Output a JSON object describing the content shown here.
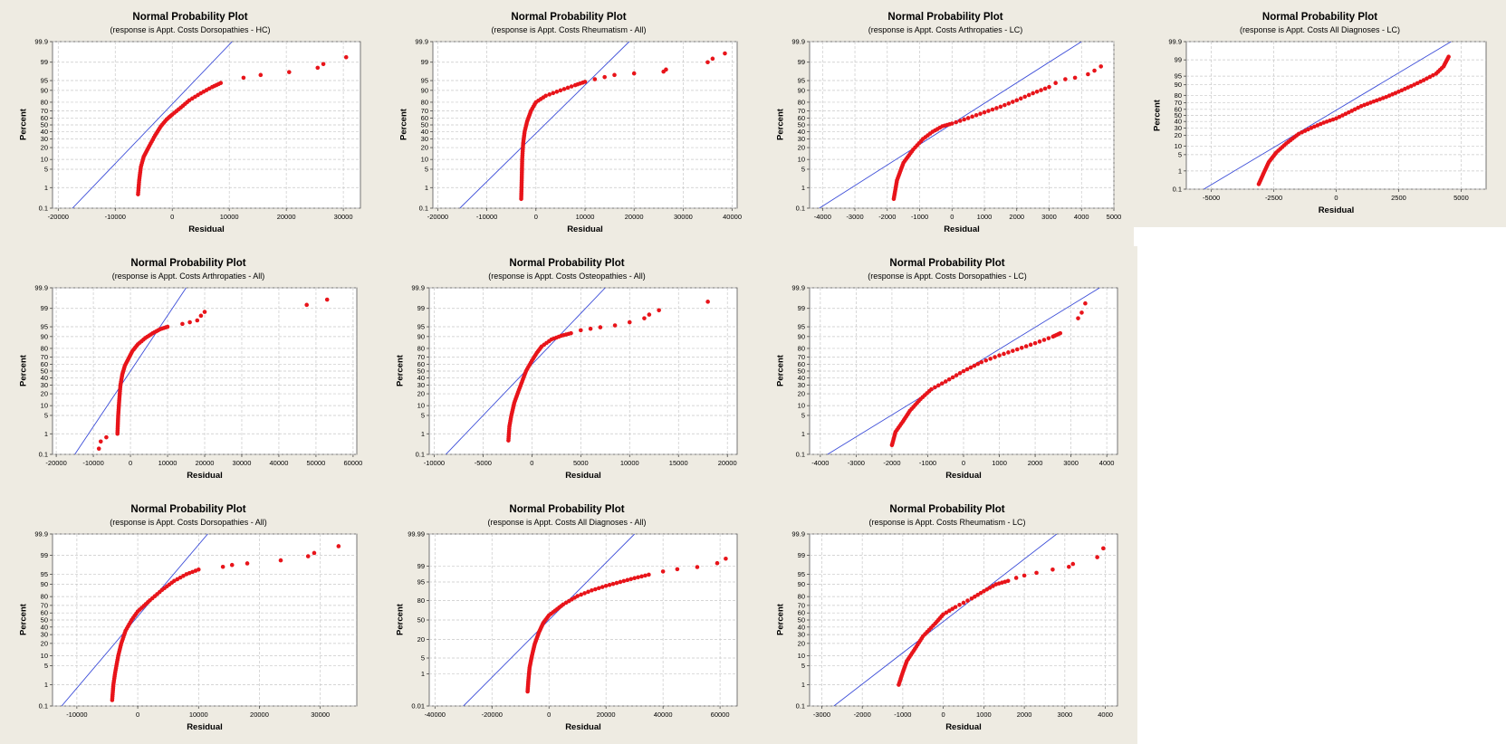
{
  "colors": {
    "background": "#eeebe2",
    "plot_bg": "#ffffff",
    "points": "#e8141a",
    "fit_line": "#3c4dd8",
    "grid": "#c8c8c8"
  },
  "chart_data": [
    {
      "type": "scatter",
      "title": "Normal Probability Plot",
      "subtitle": "(response is Appt. Costs Dorsopathies - HC)",
      "xlabel": "Residual",
      "ylabel": "Percent",
      "xlim": [
        -21000,
        33000
      ],
      "xticks": [
        -20000,
        -10000,
        0,
        10000,
        20000,
        30000
      ],
      "yticks": [
        0.1,
        1,
        5,
        10,
        20,
        30,
        40,
        50,
        60,
        70,
        80,
        90,
        95,
        99,
        99.9
      ],
      "ylim_percent": [
        0.1,
        99.9
      ],
      "grid": true,
      "fit_line": [
        [
          -17500,
          0.1
        ],
        [
          10500,
          99.9
        ]
      ],
      "body": [
        [
          -6000,
          0.5
        ],
        [
          -5800,
          2
        ],
        [
          -5500,
          6
        ],
        [
          -5000,
          12
        ],
        [
          -4000,
          22
        ],
        [
          -3000,
          35
        ],
        [
          -2000,
          48
        ],
        [
          -1000,
          58
        ],
        [
          0,
          65
        ],
        [
          1500,
          74
        ],
        [
          3000,
          82
        ],
        [
          5000,
          88
        ],
        [
          7000,
          92
        ],
        [
          8500,
          94
        ]
      ],
      "outliers": [
        [
          12500,
          96
        ],
        [
          15500,
          96.8
        ],
        [
          20500,
          97.5
        ],
        [
          25500,
          98.3
        ],
        [
          26500,
          98.8
        ],
        [
          30500,
          99.4
        ]
      ]
    },
    {
      "type": "scatter",
      "title": "Normal Probability Plot",
      "subtitle": "(response is Appt. Costs Rheumatism - All)",
      "xlabel": "Residual",
      "ylabel": "Percent",
      "xlim": [
        -21000,
        41000
      ],
      "xticks": [
        -20000,
        -10000,
        0,
        10000,
        20000,
        30000,
        40000
      ],
      "yticks": [
        0.1,
        1,
        5,
        10,
        20,
        30,
        40,
        50,
        60,
        70,
        80,
        90,
        95,
        99,
        99.9
      ],
      "ylim_percent": [
        0.1,
        99.9
      ],
      "grid": true,
      "fit_line": [
        [
          -15500,
          0.1
        ],
        [
          19000,
          99.9
        ]
      ],
      "body": [
        [
          -3000,
          0.3
        ],
        [
          -2900,
          2
        ],
        [
          -2800,
          10
        ],
        [
          -2600,
          25
        ],
        [
          -2300,
          40
        ],
        [
          -1800,
          55
        ],
        [
          -1000,
          70
        ],
        [
          0,
          80
        ],
        [
          2000,
          86
        ],
        [
          5000,
          90
        ],
        [
          8000,
          93
        ],
        [
          10000,
          94.5
        ]
      ],
      "outliers": [
        [
          12000,
          95.5
        ],
        [
          14000,
          96.2
        ],
        [
          16000,
          96.8
        ],
        [
          20000,
          97.2
        ],
        [
          26000,
          97.6
        ],
        [
          26500,
          98
        ],
        [
          35000,
          99
        ],
        [
          36000,
          99.3
        ],
        [
          38500,
          99.6
        ]
      ]
    },
    {
      "type": "scatter",
      "title": "Normal Probability Plot",
      "subtitle": "(response is Appt. Costs Arthropaties - LC)",
      "xlabel": "Residual",
      "ylabel": "Percent",
      "xlim": [
        -4400,
        5000
      ],
      "xticks": [
        -4000,
        -3000,
        -2000,
        -1000,
        0,
        1000,
        2000,
        3000,
        4000,
        5000
      ],
      "yticks": [
        0.1,
        1,
        5,
        10,
        20,
        30,
        40,
        50,
        60,
        70,
        80,
        90,
        95,
        99,
        99.9
      ],
      "ylim_percent": [
        0.1,
        99.9
      ],
      "grid": true,
      "fit_line": [
        [
          -4100,
          0.1
        ],
        [
          4000,
          99.9
        ]
      ],
      "body": [
        [
          -1800,
          0.3
        ],
        [
          -1700,
          2
        ],
        [
          -1500,
          8
        ],
        [
          -1200,
          18
        ],
        [
          -900,
          30
        ],
        [
          -600,
          40
        ],
        [
          -300,
          48
        ],
        [
          0,
          52
        ],
        [
          500,
          60
        ],
        [
          1000,
          68
        ],
        [
          1500,
          75
        ],
        [
          2000,
          82
        ],
        [
          2500,
          88
        ],
        [
          3000,
          92
        ]
      ],
      "outliers": [
        [
          3200,
          94
        ],
        [
          3500,
          95.5
        ],
        [
          3800,
          96
        ],
        [
          4200,
          97
        ],
        [
          4400,
          97.8
        ],
        [
          4600,
          98.5
        ]
      ]
    },
    {
      "type": "scatter",
      "title": "Normal Probability Plot",
      "subtitle": "(response is Appt. Costs All Diagnoses - LC)",
      "xlabel": "Residual",
      "ylabel": "Percent",
      "xlim": [
        -6000,
        6000
      ],
      "xticks": [
        -5000,
        -2500,
        0,
        2500,
        5000
      ],
      "yticks": [
        0.1,
        1,
        5,
        10,
        20,
        30,
        40,
        50,
        60,
        70,
        80,
        90,
        95,
        99,
        99.9
      ],
      "ylim_percent": [
        0.1,
        99.9
      ],
      "grid": true,
      "fit_line": [
        [
          -5300,
          0.1
        ],
        [
          4600,
          99.9
        ]
      ],
      "body": [
        [
          -3100,
          0.2
        ],
        [
          -2900,
          0.8
        ],
        [
          -2700,
          2.5
        ],
        [
          -2400,
          6
        ],
        [
          -2000,
          12
        ],
        [
          -1500,
          22
        ],
        [
          -1000,
          30
        ],
        [
          -500,
          38
        ],
        [
          0,
          45
        ],
        [
          500,
          55
        ],
        [
          1000,
          65
        ],
        [
          1500,
          72
        ],
        [
          2000,
          78
        ],
        [
          2500,
          84
        ],
        [
          3000,
          89
        ],
        [
          3500,
          93
        ],
        [
          4000,
          96
        ],
        [
          4300,
          98
        ],
        [
          4500,
          99.3
        ]
      ],
      "outliers": []
    },
    {
      "type": "scatter",
      "title": "Normal Probability Plot",
      "subtitle": "(response is Appt. Costs Arthropaties - All)",
      "xlabel": "Residual",
      "ylabel": "Percent",
      "xlim": [
        -21000,
        61000
      ],
      "xticks": [
        -20000,
        -10000,
        0,
        10000,
        20000,
        30000,
        40000,
        50000,
        60000
      ],
      "yticks": [
        0.1,
        1,
        5,
        10,
        20,
        30,
        40,
        50,
        60,
        70,
        80,
        90,
        95,
        99,
        99.9
      ],
      "ylim_percent": [
        0.1,
        99.9
      ],
      "grid": true,
      "fit_line": [
        [
          -15000,
          0.1
        ],
        [
          15000,
          99.9
        ]
      ],
      "body": [
        [
          -3500,
          1
        ],
        [
          -3300,
          5
        ],
        [
          -3000,
          15
        ],
        [
          -2700,
          30
        ],
        [
          -2200,
          45
        ],
        [
          -1500,
          58
        ],
        [
          -500,
          68
        ],
        [
          500,
          77
        ],
        [
          2000,
          84
        ],
        [
          4000,
          89
        ],
        [
          6000,
          92
        ],
        [
          8000,
          94
        ],
        [
          10000,
          95
        ]
      ],
      "outliers": [
        [
          -8500,
          0.2
        ],
        [
          -8000,
          0.45
        ],
        [
          -6500,
          0.7
        ],
        [
          14000,
          96
        ],
        [
          16000,
          96.5
        ],
        [
          18000,
          97
        ],
        [
          19000,
          98
        ],
        [
          20000,
          98.6
        ],
        [
          47500,
          99.3
        ],
        [
          53000,
          99.6
        ]
      ]
    },
    {
      "type": "scatter",
      "title": "Normal Probability Plot",
      "subtitle": "(response is Appt. Costs Osteopathies - All)",
      "xlabel": "Residual",
      "ylabel": "Percent",
      "xlim": [
        -10500,
        21000
      ],
      "xticks": [
        -10000,
        -5000,
        0,
        5000,
        10000,
        15000,
        20000
      ],
      "yticks": [
        0.1,
        1,
        5,
        10,
        20,
        30,
        40,
        50,
        60,
        70,
        80,
        90,
        95,
        99,
        99.9
      ],
      "ylim_percent": [
        0.1,
        99.9
      ],
      "grid": true,
      "fit_line": [
        [
          -8800,
          0.1
        ],
        [
          7500,
          99.9
        ]
      ],
      "body": [
        [
          -2400,
          0.5
        ],
        [
          -2300,
          2
        ],
        [
          -2100,
          5
        ],
        [
          -1800,
          12
        ],
        [
          -1400,
          22
        ],
        [
          -1000,
          35
        ],
        [
          -600,
          50
        ],
        [
          0,
          65
        ],
        [
          500,
          75
        ],
        [
          1000,
          82
        ],
        [
          2000,
          88
        ],
        [
          3000,
          90.5
        ],
        [
          4000,
          92
        ]
      ],
      "outliers": [
        [
          5000,
          93.5
        ],
        [
          6000,
          94.2
        ],
        [
          7000,
          94.8
        ],
        [
          8500,
          95.5
        ],
        [
          10000,
          96.5
        ],
        [
          11500,
          97.5
        ],
        [
          12000,
          98.2
        ],
        [
          13000,
          98.8
        ],
        [
          18000,
          99.5
        ]
      ]
    },
    {
      "type": "scatter",
      "title": "Normal Probability Plot",
      "subtitle": "(response is Appt. Costs Dorsopathies - LC)",
      "xlabel": "Residual",
      "ylabel": "Percent",
      "xlim": [
        -4300,
        4300
      ],
      "xticks": [
        -4000,
        -3000,
        -2000,
        -1000,
        0,
        1000,
        2000,
        3000,
        4000
      ],
      "yticks": [
        0.1,
        1,
        5,
        10,
        20,
        30,
        40,
        50,
        60,
        70,
        80,
        90,
        95,
        99,
        99.9
      ],
      "ylim_percent": [
        0.1,
        99.9
      ],
      "grid": true,
      "fit_line": [
        [
          -3800,
          0.1
        ],
        [
          3800,
          99.9
        ]
      ],
      "body": [
        [
          -2000,
          0.3
        ],
        [
          -1900,
          1.2
        ],
        [
          -1700,
          3
        ],
        [
          -1500,
          7
        ],
        [
          -1200,
          15
        ],
        [
          -900,
          25
        ],
        [
          -500,
          35
        ],
        [
          0,
          50
        ],
        [
          500,
          63
        ],
        [
          1000,
          72
        ],
        [
          1500,
          79
        ],
        [
          2000,
          85
        ],
        [
          2500,
          90
        ],
        [
          2700,
          92
        ]
      ],
      "outliers": [
        [
          3200,
          97.5
        ],
        [
          3300,
          98.5
        ],
        [
          3400,
          99.4
        ]
      ]
    },
    {
      "type": "scatter",
      "title": "Normal Probability Plot",
      "subtitle": "(response is Appt. Costs Dorsopathies - All)",
      "xlabel": "Residual",
      "ylabel": "Percent",
      "xlim": [
        -14000,
        36000
      ],
      "xticks": [
        -10000,
        0,
        10000,
        20000,
        30000
      ],
      "yticks": [
        0.1,
        1,
        5,
        10,
        20,
        30,
        40,
        50,
        60,
        70,
        80,
        90,
        95,
        99,
        99.9
      ],
      "ylim_percent": [
        0.1,
        99.9
      ],
      "grid": true,
      "fit_line": [
        [
          -12500,
          0.1
        ],
        [
          11500,
          99.9
        ]
      ],
      "body": [
        [
          -4200,
          0.2
        ],
        [
          -4000,
          1
        ],
        [
          -3700,
          3
        ],
        [
          -3200,
          10
        ],
        [
          -2700,
          20
        ],
        [
          -2000,
          35
        ],
        [
          -1000,
          50
        ],
        [
          0,
          62
        ],
        [
          2000,
          76
        ],
        [
          4000,
          86
        ],
        [
          6000,
          92
        ],
        [
          8000,
          95
        ],
        [
          10000,
          96.5
        ]
      ],
      "outliers": [
        [
          14000,
          97.2
        ],
        [
          15500,
          97.6
        ],
        [
          18000,
          97.9
        ],
        [
          23500,
          98.4
        ],
        [
          28000,
          98.9
        ],
        [
          29000,
          99.2
        ],
        [
          33000,
          99.6
        ]
      ]
    },
    {
      "type": "scatter",
      "title": "Normal Probability Plot",
      "subtitle": "(response is Appt. Costs All Diagnoses - All)",
      "xlabel": "Residual",
      "ylabel": "Percent",
      "xlim": [
        -42000,
        66000
      ],
      "xticks": [
        -40000,
        -20000,
        0,
        20000,
        40000,
        60000
      ],
      "yticks": [
        0.01,
        1,
        5,
        20,
        50,
        80,
        95,
        99,
        99.99
      ],
      "ylim_percent": [
        0.01,
        99.99
      ],
      "grid": true,
      "fit_line": [
        [
          -30000,
          0.01
        ],
        [
          30000,
          99.99
        ]
      ],
      "body": [
        [
          -7500,
          0.1
        ],
        [
          -7200,
          0.5
        ],
        [
          -6800,
          2
        ],
        [
          -6000,
          6
        ],
        [
          -5000,
          15
        ],
        [
          -3500,
          30
        ],
        [
          -2000,
          45
        ],
        [
          0,
          58
        ],
        [
          5000,
          75
        ],
        [
          10000,
          85
        ],
        [
          15000,
          90
        ],
        [
          20000,
          93
        ],
        [
          25000,
          95
        ],
        [
          30000,
          96.5
        ],
        [
          35000,
          97.5
        ]
      ],
      "outliers": [
        [
          40000,
          98.2
        ],
        [
          45000,
          98.6
        ],
        [
          52000,
          98.9
        ],
        [
          59000,
          99.3
        ],
        [
          62000,
          99.6
        ]
      ]
    },
    {
      "type": "scatter",
      "title": "Normal Probability Plot",
      "subtitle": "(response is Appt. Costs Rheumatism - LC)",
      "xlabel": "Residual",
      "ylabel": "Percent",
      "xlim": [
        -3300,
        4300
      ],
      "xticks": [
        -3000,
        -2000,
        -1000,
        0,
        1000,
        2000,
        3000,
        4000
      ],
      "yticks": [
        0.1,
        1,
        5,
        10,
        20,
        30,
        40,
        50,
        60,
        70,
        80,
        90,
        95,
        99,
        99.9
      ],
      "ylim_percent": [
        0.1,
        99.9
      ],
      "grid": true,
      "fit_line": [
        [
          -2700,
          0.1
        ],
        [
          2800,
          99.9
        ]
      ],
      "body": [
        [
          -1100,
          1
        ],
        [
          -1000,
          3
        ],
        [
          -900,
          7
        ],
        [
          -700,
          15
        ],
        [
          -500,
          28
        ],
        [
          -200,
          45
        ],
        [
          0,
          58
        ],
        [
          300,
          68
        ],
        [
          700,
          78
        ],
        [
          1000,
          85
        ],
        [
          1300,
          90
        ],
        [
          1600,
          92
        ]
      ],
      "outliers": [
        [
          1800,
          93.5
        ],
        [
          2000,
          94.5
        ],
        [
          2300,
          95.5
        ],
        [
          2700,
          96.5
        ],
        [
          3100,
          97.2
        ],
        [
          3200,
          97.8
        ],
        [
          3800,
          98.8
        ],
        [
          3950,
          99.5
        ]
      ]
    }
  ]
}
